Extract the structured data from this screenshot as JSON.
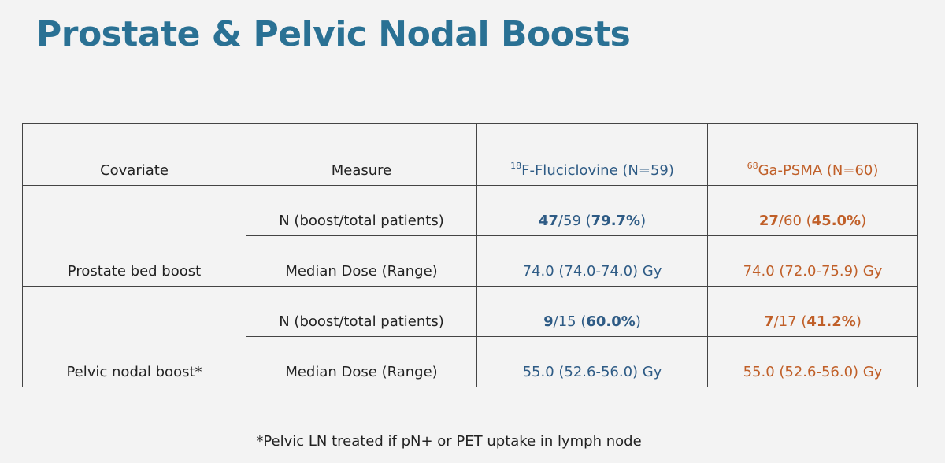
{
  "title": "Prostate & Pelvic Nodal Boosts",
  "table": {
    "column_colors": [
      null,
      null,
      "#2e5b85",
      "#c05f28"
    ],
    "header": [
      {
        "text": "Covariate"
      },
      {
        "text": "Measure"
      },
      {
        "sup": "18",
        "text": "F-Fluciclovine (N=59)"
      },
      {
        "sup": "68",
        "text": "Ga-PSMA (N=60)"
      }
    ],
    "groups": [
      {
        "covariate": "Prostate bed boost",
        "rows": [
          {
            "measure": "N (boost/total patients)",
            "cells": [
              [
                {
                  "text": "47",
                  "bold": true
                },
                {
                  "text": "/59 ("
                },
                {
                  "text": "79.7%",
                  "bold": true
                },
                {
                  "text": ")"
                }
              ],
              [
                {
                  "text": "27",
                  "bold": true
                },
                {
                  "text": "/60 ("
                },
                {
                  "text": "45.0%",
                  "bold": true
                },
                {
                  "text": ")"
                }
              ]
            ]
          },
          {
            "measure": "Median Dose (Range)",
            "cells": [
              [
                {
                  "text": "74.0 (74.0-74.0) Gy"
                }
              ],
              [
                {
                  "text": "74.0 (72.0-75.9) Gy"
                }
              ]
            ]
          }
        ]
      },
      {
        "covariate": "Pelvic nodal boost*",
        "rows": [
          {
            "measure": "N (boost/total patients)",
            "cells": [
              [
                {
                  "text": "9",
                  "bold": true
                },
                {
                  "text": "/15 ("
                },
                {
                  "text": "60.0%",
                  "bold": true
                },
                {
                  "text": ")"
                }
              ],
              [
                {
                  "text": "7",
                  "bold": true
                },
                {
                  "text": "/17 ("
                },
                {
                  "text": "41.2%",
                  "bold": true
                },
                {
                  "text": ")"
                }
              ]
            ]
          },
          {
            "measure": "Median Dose (Range)",
            "cells": [
              [
                {
                  "text": "55.0 (52.6-56.0) Gy"
                }
              ],
              [
                {
                  "text": "55.0 (52.6-56.0) Gy"
                }
              ]
            ]
          }
        ]
      }
    ]
  },
  "footnote": "*Pelvic LN treated if pN+ or PET uptake in lymph node"
}
